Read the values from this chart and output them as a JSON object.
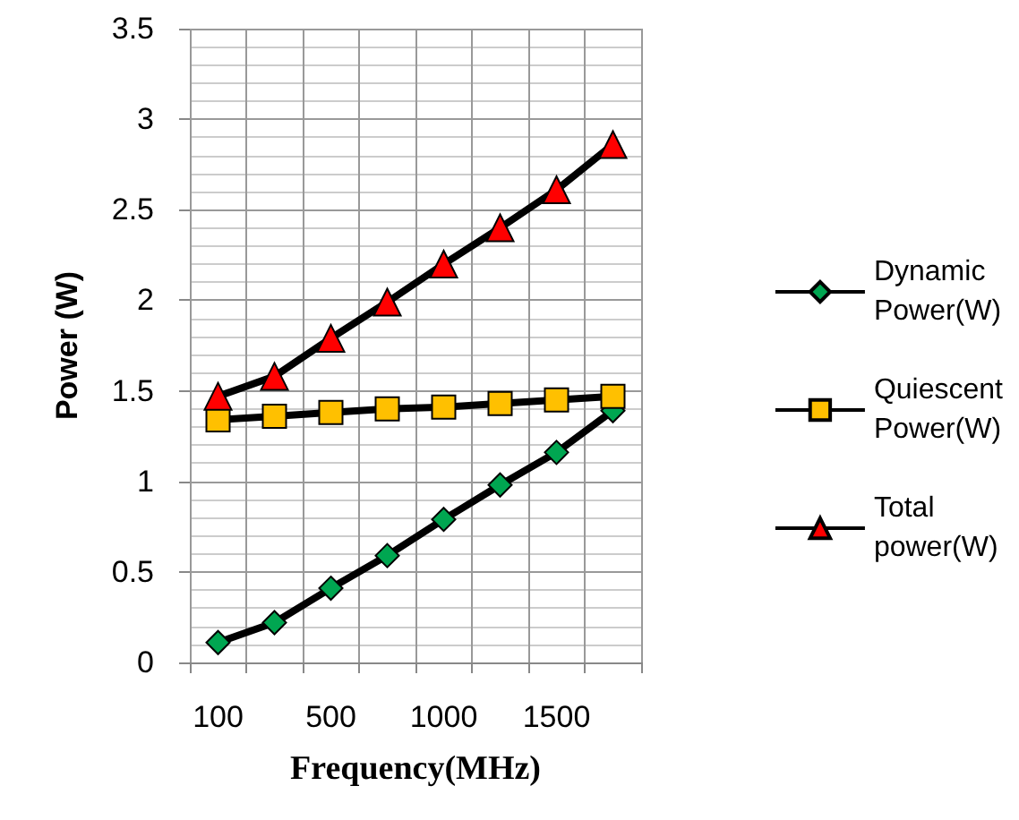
{
  "chart_data": {
    "type": "line",
    "xlabel": "Frequency(MHz)",
    "ylabel": "Power (W)",
    "categories": [
      "100",
      null,
      "500",
      null,
      "1000",
      null,
      "1500",
      null
    ],
    "series": [
      {
        "name": "Dynamic Power(W)",
        "color": "#00a651",
        "marker": "diamond",
        "values": [
          0.11,
          0.22,
          0.41,
          0.59,
          0.79,
          0.98,
          1.16,
          1.39
        ]
      },
      {
        "name": "Quiescent Power(W)",
        "color": "#ffc000",
        "marker": "square",
        "values": [
          1.34,
          1.36,
          1.38,
          1.4,
          1.41,
          1.43,
          1.45,
          1.47
        ]
      },
      {
        "name": "Total power(W)",
        "color": "#ff0000",
        "marker": "triangle",
        "values": [
          1.47,
          1.58,
          1.79,
          1.99,
          2.2,
          2.4,
          2.61,
          2.86
        ]
      }
    ],
    "ylim": [
      0,
      3.5
    ],
    "yticks": [
      0,
      0.5,
      1,
      1.5,
      2,
      2.5,
      3,
      3.5
    ],
    "grid": true,
    "legend": "right"
  }
}
